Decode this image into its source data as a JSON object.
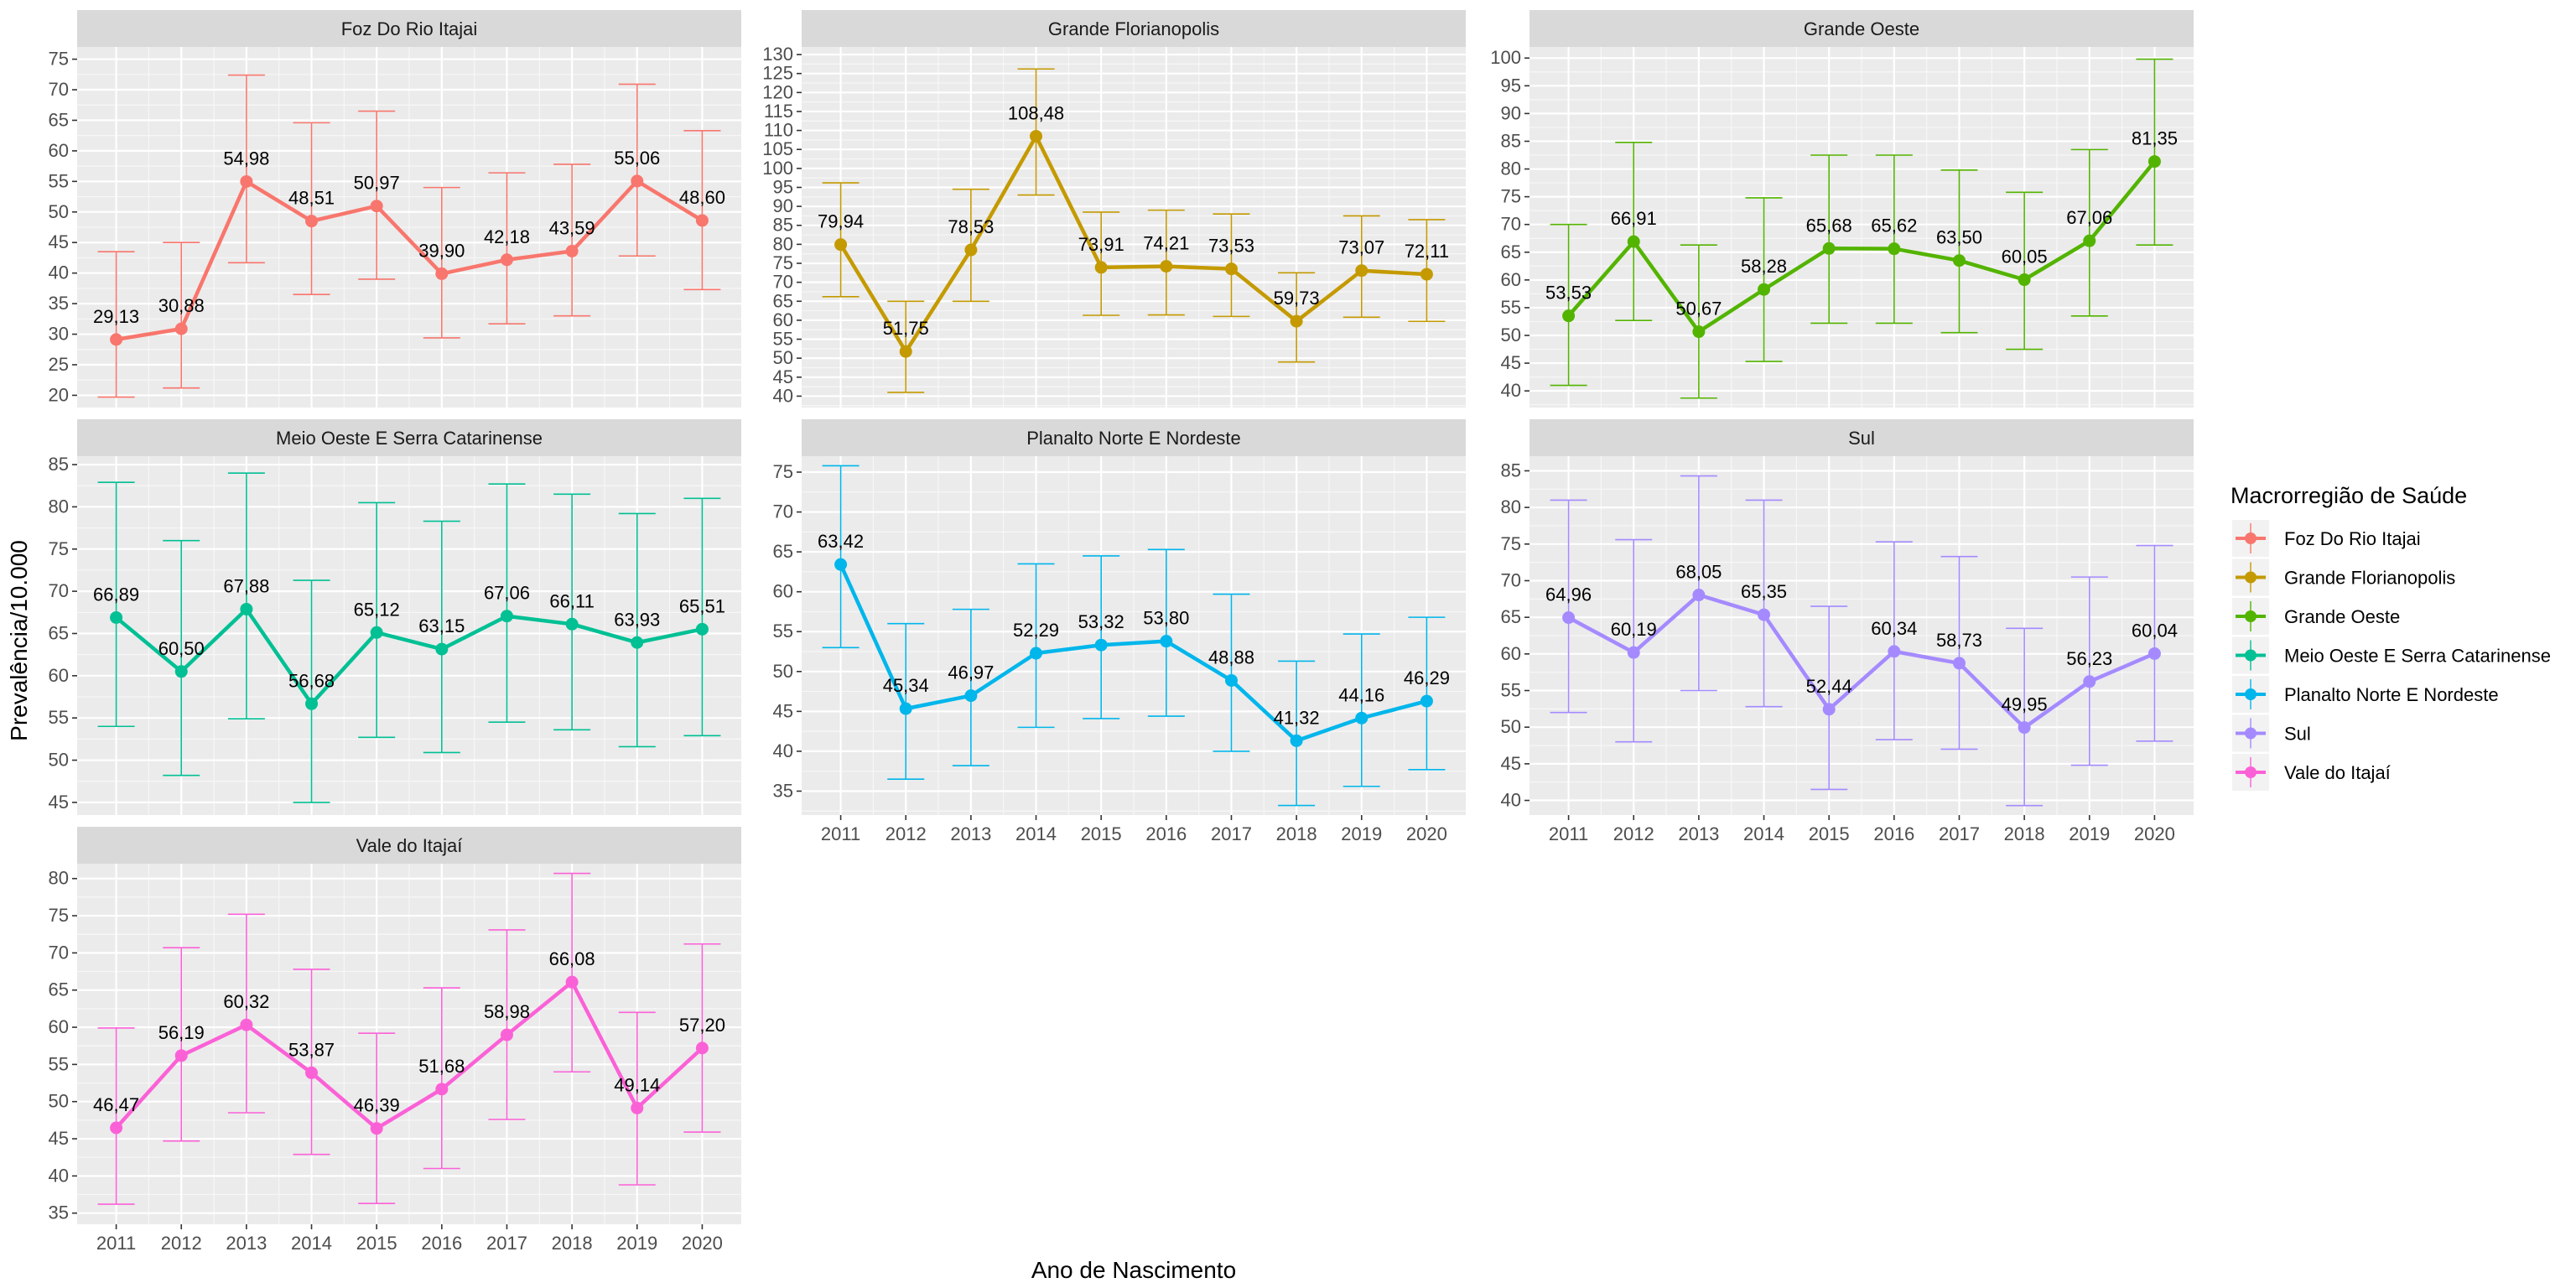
{
  "chart_data": {
    "type": "line",
    "layout": "facet-wrap 3 columns, free y scales, error bars with point and line per panel",
    "xlabel": "Ano de Nascimento",
    "ylabel": "Prevalência/10.000",
    "legend": {
      "title": "Macrorregião de Saúde",
      "position": "right"
    },
    "grid": true,
    "x": [
      2011,
      2012,
      2013,
      2014,
      2015,
      2016,
      2017,
      2018,
      2019,
      2020
    ],
    "panels": [
      {
        "name": "Foz Do Rio Itajai",
        "color": "#F8766D",
        "ylim": [
          18,
          77
        ],
        "yticks": [
          20,
          25,
          30,
          35,
          40,
          45,
          50,
          55,
          60,
          65,
          70,
          75
        ],
        "values": [
          29.13,
          30.88,
          54.98,
          48.51,
          50.97,
          39.9,
          42.18,
          43.59,
          55.06,
          48.6
        ],
        "labels": [
          "29,13",
          "30,88",
          "54,98",
          "48,51",
          "50,97",
          "39,90",
          "42,18",
          "43,59",
          "55,06",
          "48,60"
        ],
        "lower": [
          19.7,
          21.2,
          41.7,
          36.5,
          39.0,
          29.4,
          31.7,
          33.0,
          42.8,
          37.3
        ],
        "upper": [
          43.5,
          45.0,
          72.4,
          64.6,
          66.5,
          54.0,
          56.4,
          57.8,
          70.9,
          63.3
        ]
      },
      {
        "name": "Grande Florianopolis",
        "color": "#C49A00",
        "ylim": [
          37,
          132
        ],
        "yticks": [
          40,
          45,
          50,
          55,
          60,
          65,
          70,
          75,
          80,
          85,
          90,
          95,
          100,
          105,
          110,
          115,
          120,
          125,
          130
        ],
        "values": [
          79.94,
          51.75,
          78.53,
          108.48,
          73.91,
          74.21,
          73.53,
          59.73,
          73.07,
          72.11
        ],
        "labels": [
          "79,94",
          "51,75",
          "78,53",
          "108,48",
          "73,91",
          "74,21",
          "73,53",
          "59,73",
          "73,07",
          "72,11"
        ],
        "lower": [
          66.2,
          41.0,
          65.0,
          93.0,
          61.3,
          61.4,
          61.0,
          49.0,
          60.8,
          59.7
        ],
        "upper": [
          96.2,
          65.0,
          94.5,
          126.2,
          88.5,
          89.0,
          88.0,
          72.5,
          87.5,
          86.5
        ]
      },
      {
        "name": "Grande Oeste",
        "color": "#53B400",
        "ylim": [
          37,
          102
        ],
        "yticks": [
          40,
          45,
          50,
          55,
          60,
          65,
          70,
          75,
          80,
          85,
          90,
          95,
          100
        ],
        "values": [
          53.53,
          66.91,
          50.67,
          58.28,
          65.68,
          65.62,
          63.5,
          60.05,
          67.06,
          81.35
        ],
        "labels": [
          "53,53",
          "66,91",
          "50,67",
          "58,28",
          "65,68",
          "65,62",
          "63,50",
          "60,05",
          "67,06",
          "81,35"
        ],
        "lower": [
          41.0,
          52.7,
          38.7,
          45.3,
          52.2,
          52.2,
          50.5,
          47.5,
          53.5,
          66.3
        ],
        "upper": [
          70.0,
          84.8,
          66.3,
          74.8,
          82.5,
          82.5,
          79.8,
          75.8,
          83.5,
          99.8
        ]
      },
      {
        "name": "Meio Oeste E Serra Catarinense",
        "color": "#00C094",
        "ylim": [
          43.5,
          86
        ],
        "yticks": [
          45,
          50,
          55,
          60,
          65,
          70,
          75,
          80,
          85
        ],
        "values": [
          66.89,
          60.5,
          67.88,
          56.68,
          65.12,
          63.15,
          67.06,
          66.11,
          63.93,
          65.51
        ],
        "labels": [
          "66,89",
          "60,50",
          "67,88",
          "56,68",
          "65,12",
          "63,15",
          "67,06",
          "66,11",
          "63,93",
          "65,51"
        ],
        "lower": [
          54.0,
          48.2,
          54.9,
          45.0,
          52.7,
          50.9,
          54.5,
          53.6,
          51.6,
          52.9
        ],
        "upper": [
          82.9,
          76.0,
          84.0,
          71.3,
          80.5,
          78.3,
          82.7,
          81.5,
          79.2,
          81.0
        ]
      },
      {
        "name": "Planalto Norte E Nordeste",
        "color": "#00B6EB",
        "ylim": [
          32,
          77
        ],
        "yticks": [
          35,
          40,
          45,
          50,
          55,
          60,
          65,
          70,
          75
        ],
        "values": [
          63.42,
          45.34,
          46.97,
          52.29,
          53.32,
          53.8,
          48.88,
          41.32,
          44.16,
          46.29
        ],
        "labels": [
          "63,42",
          "45,34",
          "46,97",
          "52,29",
          "53,32",
          "53,80",
          "48,88",
          "41,32",
          "44,16",
          "46,29"
        ],
        "lower": [
          53.0,
          36.5,
          38.2,
          43.0,
          44.1,
          44.4,
          40.0,
          33.2,
          35.6,
          37.7
        ],
        "upper": [
          75.8,
          56.0,
          57.8,
          63.5,
          64.5,
          65.3,
          59.7,
          51.3,
          54.7,
          56.8
        ]
      },
      {
        "name": "Sul",
        "color": "#A58AFF",
        "ylim": [
          38,
          87
        ],
        "yticks": [
          40,
          45,
          50,
          55,
          60,
          65,
          70,
          75,
          80,
          85
        ],
        "values": [
          64.96,
          60.19,
          68.05,
          65.35,
          52.44,
          60.34,
          58.73,
          49.95,
          56.23,
          60.04
        ],
        "labels": [
          "64,96",
          "60,19",
          "68,05",
          "65,35",
          "52,44",
          "60,34",
          "58,73",
          "49,95",
          "56,23",
          "60,04"
        ],
        "lower": [
          52.0,
          48.0,
          55.0,
          52.8,
          41.5,
          48.3,
          47.0,
          39.3,
          44.8,
          48.1
        ],
        "upper": [
          81.0,
          75.6,
          84.3,
          81.0,
          66.5,
          75.3,
          73.3,
          63.5,
          70.5,
          74.8
        ]
      },
      {
        "name": "Vale do Itajaí",
        "color": "#FB61D7",
        "ylim": [
          33.5,
          82
        ],
        "yticks": [
          35,
          40,
          45,
          50,
          55,
          60,
          65,
          70,
          75,
          80
        ],
        "values": [
          46.47,
          56.19,
          60.32,
          53.87,
          46.39,
          51.68,
          58.98,
          66.08,
          49.14,
          57.2
        ],
        "labels": [
          "46,47",
          "56,19",
          "60,32",
          "53,87",
          "46,39",
          "51,68",
          "58,98",
          "66,08",
          "49,14",
          "57,20"
        ],
        "lower": [
          36.2,
          44.7,
          48.5,
          42.9,
          36.3,
          41.0,
          47.6,
          54.0,
          38.8,
          45.9
        ],
        "upper": [
          59.9,
          70.7,
          75.2,
          67.8,
          59.2,
          65.3,
          73.1,
          80.7,
          62.0,
          71.2
        ]
      }
    ]
  }
}
